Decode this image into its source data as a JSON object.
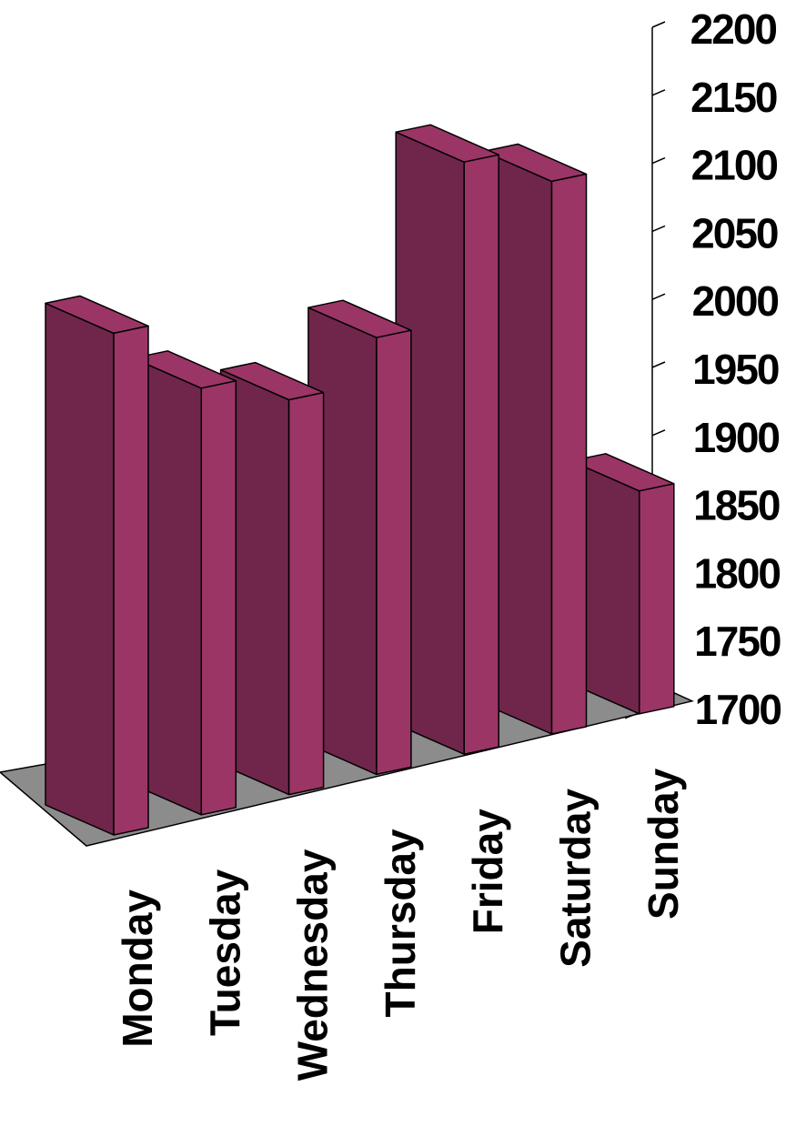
{
  "chart_data": {
    "type": "bar",
    "style": "3d",
    "title": "",
    "xlabel": "",
    "ylabel": "",
    "categories": [
      "Monday",
      "Tuesday",
      "Wednesday",
      "Thursday",
      "Friday",
      "Saturday",
      "Sunday"
    ],
    "values": [
      2094,
      2035,
      2010,
      2043,
      2165,
      2134,
      1875
    ],
    "ylim": [
      1700,
      2200
    ],
    "yticks": [
      "1700",
      "1750",
      "1800",
      "1850",
      "1900",
      "1950",
      "2000",
      "2050",
      "2100",
      "2150",
      "2200"
    ],
    "grid": false,
    "legend": "none",
    "colors": {
      "bar_front": "#9b3566",
      "bar_side": "#70264b",
      "floor": "#8c8c8c",
      "outline": "#000000"
    }
  }
}
